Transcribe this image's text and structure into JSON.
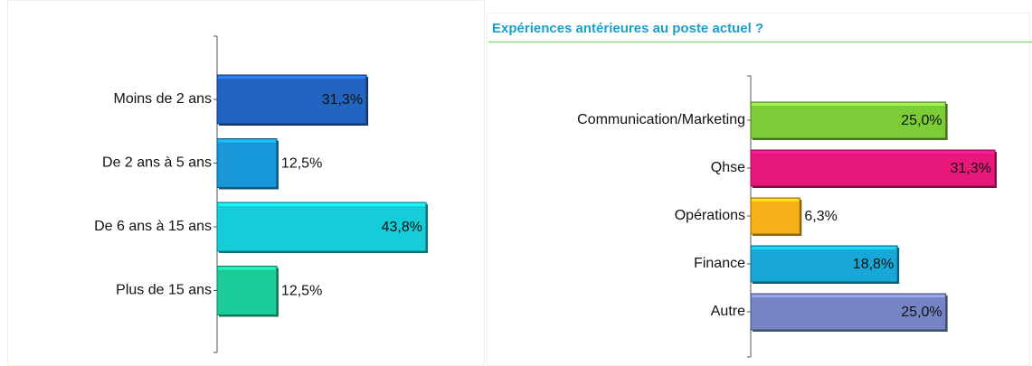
{
  "chart_data": [
    {
      "type": "bar",
      "categories": [
        "Moins de 2 ans",
        "De 2 ans à 5 ans",
        "De 6 ans à 15 ans",
        "Plus de 15 ans"
      ],
      "values": [
        31.3,
        12.5,
        43.8,
        12.5
      ],
      "value_labels": [
        "31,3%",
        "12,5%",
        "43,8%",
        "12,5%"
      ],
      "colors": [
        "#2165c0",
        "#1898d8",
        "#14cdd8",
        "#1ccc98"
      ]
    },
    {
      "type": "bar",
      "title": "Expériences antérieures au poste actuel ?",
      "categories": [
        "Communication/Marketing",
        "Qhse",
        "Opérations",
        "Finance",
        "Autre"
      ],
      "values": [
        25.0,
        31.3,
        6.3,
        18.8,
        25.0
      ],
      "value_labels": [
        "25,0%",
        "31,3%",
        "6,3%",
        "18,8%",
        "25,0%"
      ],
      "colors": [
        "#7ccc38",
        "#e8177a",
        "#f8b018",
        "#18a8d8",
        "#7484c4"
      ]
    }
  ]
}
